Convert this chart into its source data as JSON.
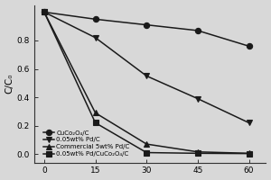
{
  "x": [
    0,
    15,
    30,
    45,
    60
  ],
  "series": [
    {
      "label": "CuCo₂O₄/C",
      "y": [
        1.0,
        0.95,
        0.91,
        0.87,
        0.76
      ],
      "marker": "o",
      "linestyle": "-",
      "color": "#1a1a1a"
    },
    {
      "label": "0.05wt% Pd/C",
      "y": [
        1.0,
        0.82,
        0.55,
        0.39,
        0.22
      ],
      "marker": "v",
      "linestyle": "-",
      "color": "#1a1a1a"
    },
    {
      "label": "Commercial 5wt% Pd/C",
      "y": [
        1.0,
        0.29,
        0.07,
        0.015,
        0.005
      ],
      "marker": "^",
      "linestyle": "-",
      "color": "#1a1a1a"
    },
    {
      "label": "0.05wt% Pd/CuCo₂O₄/C",
      "y": [
        1.0,
        0.22,
        0.01,
        0.005,
        0.003
      ],
      "marker": "s",
      "linestyle": "-",
      "color": "#1a1a1a"
    }
  ],
  "ylabel": "C/C₀",
  "xlim": [
    -3,
    65
  ],
  "ylim": [
    -0.06,
    1.05
  ],
  "xticks": [
    0,
    15,
    30,
    45,
    60
  ],
  "yticks": [
    0.0,
    0.2,
    0.4,
    0.6,
    0.8
  ],
  "background_color": "#d8d8d8",
  "plot_bg_color": "#d8d8d8",
  "legend_fontsize": 5.0,
  "ylabel_fontsize": 7.5,
  "tick_fontsize": 6.5,
  "linewidth": 1.1,
  "markersize": 4.5
}
